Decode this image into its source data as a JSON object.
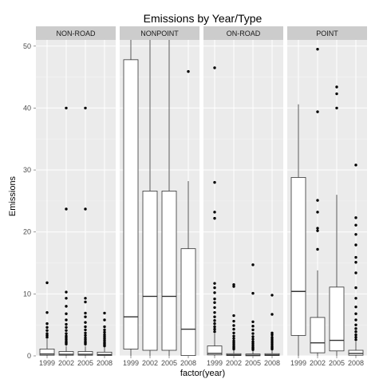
{
  "chart_data": {
    "type": "boxplot",
    "title": "Emissions by Year/Type",
    "xlabel": "factor(year)",
    "ylabel": "Emissions",
    "ylim": [
      0,
      51
    ],
    "yticks": [
      0,
      10,
      20,
      30,
      40,
      50
    ],
    "categories": [
      "1999",
      "2002",
      "2005",
      "2008"
    ],
    "colors": {
      "panel": "#ebebeb",
      "grid_major": "#ffffff",
      "grid_minor": "#f5f5f5",
      "strip": "#cccccc",
      "box_fill": "#ffffff",
      "stroke": "#333333",
      "point": "#000000"
    },
    "panels": [
      {
        "name": "NON-ROAD",
        "boxes": [
          {
            "year": "1999",
            "min": 0,
            "q1": 0.1,
            "median": 0.3,
            "q3": 1.1,
            "whisker_hi": 2.7,
            "outliers": [
              3.0,
              3.3,
              3.6,
              4.1,
              4.6,
              5.2,
              7.0,
              11.8
            ]
          },
          {
            "year": "2002",
            "min": 0,
            "q1": 0.1,
            "median": 0.25,
            "q3": 0.7,
            "whisker_hi": 1.6,
            "outliers": [
              1.9,
              2.1,
              2.3,
              2.6,
              2.9,
              3.2,
              3.6,
              4.1,
              4.6,
              5.1,
              5.8,
              6.8,
              8.0,
              9.3,
              10.3,
              23.7,
              40.0
            ]
          },
          {
            "year": "2005",
            "min": 0,
            "q1": 0.1,
            "median": 0.25,
            "q3": 0.7,
            "whisker_hi": 1.6,
            "outliers": [
              1.9,
              2.1,
              2.3,
              2.6,
              2.9,
              3.3,
              3.7,
              4.2,
              4.7,
              5.4,
              6.3,
              6.9,
              8.7,
              9.3,
              23.7,
              40.0
            ]
          },
          {
            "year": "2008",
            "min": 0,
            "q1": 0.05,
            "median": 0.2,
            "q3": 0.6,
            "whisker_hi": 1.4,
            "outliers": [
              1.6,
              1.8,
              2.0,
              2.2,
              2.5,
              2.8,
              3.1,
              3.4,
              3.8,
              4.2,
              4.7,
              5.8,
              6.9
            ]
          }
        ]
      },
      {
        "name": "NONPOINT",
        "boxes": [
          {
            "year": "1999",
            "min": 0,
            "q1": 1.1,
            "median": 6.3,
            "q3": 47.8,
            "whisker_hi": 51,
            "outliers": []
          },
          {
            "year": "2002",
            "min": 0,
            "q1": 0.9,
            "median": 9.6,
            "q3": 26.6,
            "whisker_hi": 51,
            "outliers": []
          },
          {
            "year": "2005",
            "min": 0,
            "q1": 0.9,
            "median": 9.6,
            "q3": 26.6,
            "whisker_hi": 51,
            "outliers": []
          },
          {
            "year": "2008",
            "min": 0,
            "q1": 0.05,
            "median": 4.3,
            "q3": 17.3,
            "whisker_hi": 28.2,
            "outliers": [
              45.9
            ]
          }
        ]
      },
      {
        "name": "ON-ROAD",
        "boxes": [
          {
            "year": "1999",
            "min": 0,
            "q1": 0.15,
            "median": 0.4,
            "q3": 1.6,
            "whisker_hi": 3.6,
            "outliers": [
              3.9,
              4.3,
              4.7,
              5.2,
              5.7,
              6.3,
              7.0,
              7.8,
              8.6,
              9.2,
              10.2,
              11.0,
              11.7,
              22.2,
              23.2,
              28.0,
              46.5
            ]
          },
          {
            "year": "2002",
            "min": 0,
            "q1": 0.05,
            "median": 0.15,
            "q3": 0.35,
            "whisker_hi": 0.9,
            "outliers": [
              1.1,
              1.3,
              1.5,
              1.8,
              2.1,
              2.4,
              2.8,
              3.2,
              3.7,
              4.3,
              4.9,
              5.6,
              6.5,
              11.2,
              11.5
            ]
          },
          {
            "year": "2005",
            "min": 0,
            "q1": 0.02,
            "median": 0.1,
            "q3": 0.3,
            "whisker_hi": 0.8,
            "outliers": [
              1.0,
              1.2,
              1.4,
              1.7,
              2.0,
              2.3,
              2.7,
              3.1,
              3.6,
              4.2,
              4.8,
              5.5,
              10.1,
              14.7
            ]
          },
          {
            "year": "2008",
            "min": 0,
            "q1": 0.05,
            "median": 0.15,
            "q3": 0.35,
            "whisker_hi": 0.9,
            "outliers": [
              1.1,
              1.3,
              1.5,
              1.8,
              2.1,
              2.4,
              2.7,
              3.0,
              3.4,
              3.7,
              6.7,
              9.8
            ]
          }
        ]
      },
      {
        "name": "POINT",
        "boxes": [
          {
            "year": "1999",
            "min": 0,
            "q1": 3.3,
            "median": 10.4,
            "q3": 28.8,
            "whisker_hi": 40.6,
            "outliers": []
          },
          {
            "year": "2002",
            "min": 0,
            "q1": 0.5,
            "median": 2.1,
            "q3": 6.2,
            "whisker_hi": 13.8,
            "outliers": [
              17.2,
              20.2,
              20.6,
              23.2,
              25.1,
              39.4,
              49.5
            ]
          },
          {
            "year": "2005",
            "min": 0,
            "q1": 0.8,
            "median": 2.5,
            "q3": 11.1,
            "whisker_hi": 26.0,
            "outliers": [
              40.0,
              42.3,
              43.4
            ]
          },
          {
            "year": "2008",
            "min": 0,
            "q1": 0.1,
            "median": 0.4,
            "q3": 0.9,
            "whisker_hi": 2.3,
            "outliers": [
              2.6,
              3.0,
              3.4,
              3.9,
              4.4,
              5.0,
              5.8,
              6.8,
              7.9,
              9.3,
              11.0,
              13.4,
              15.1,
              15.9,
              17.9,
              19.6,
              21.1,
              22.3,
              30.8
            ]
          }
        ]
      }
    ]
  }
}
